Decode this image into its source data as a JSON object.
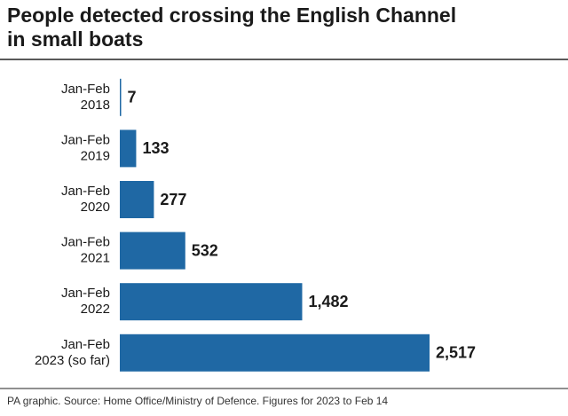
{
  "chart_data": {
    "type": "barh",
    "title": [
      "People detected crossing the English Channel",
      "in small boats"
    ],
    "categories": [
      [
        "Jan-Feb",
        "2018"
      ],
      [
        "Jan-Feb",
        "2019"
      ],
      [
        "Jan-Feb",
        "2020"
      ],
      [
        "Jan-Feb",
        "2021"
      ],
      [
        "Jan-Feb",
        "2022"
      ],
      [
        "Jan-Feb",
        "2023 (so far)"
      ]
    ],
    "values": [
      7,
      133,
      277,
      532,
      1482,
      2517
    ],
    "value_labels": [
      "7",
      "133",
      "277",
      "532",
      "1,482",
      "2,517"
    ],
    "color": "#1f68a4",
    "source": "PA graphic. Source: Home Office/Ministry of Defence. Figures for 2023 to Feb 14"
  }
}
